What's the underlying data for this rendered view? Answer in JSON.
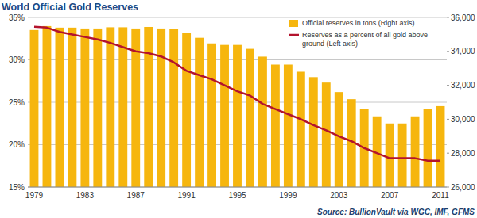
{
  "chart_data": {
    "type": "bar",
    "title": "World Official Gold Reserves",
    "source": "Source: BullionVault via WGC, IMF, GFMS",
    "categories": [
      "1979",
      null,
      null,
      null,
      "1983",
      null,
      null,
      null,
      "1987",
      null,
      null,
      null,
      "1991",
      null,
      null,
      null,
      "1995",
      null,
      null,
      null,
      "1999",
      null,
      null,
      null,
      "2003",
      null,
      null,
      null,
      "2007",
      null,
      null,
      null,
      "2011"
    ],
    "series": [
      {
        "name": "Official reserves in tons (Right axis)",
        "type": "bar",
        "color": "#f6b60e",
        "axis": "y2",
        "values": [
          35260,
          35490,
          35400,
          35400,
          35350,
          35350,
          35420,
          35420,
          35350,
          35440,
          35350,
          35330,
          35070,
          34800,
          34470,
          34380,
          34380,
          34150,
          33690,
          33220,
          33220,
          32800,
          32480,
          32160,
          31600,
          31180,
          30580,
          30170,
          29750,
          29750,
          30170,
          30580,
          30770
        ]
      },
      {
        "name": "Reserves as a percent of all gold above ground (Left axis)",
        "type": "line",
        "color": "#b3132d",
        "values": [
          33.9,
          33.8,
          33.3,
          33.0,
          32.7,
          32.4,
          32.0,
          31.5,
          31.0,
          30.8,
          30.4,
          29.7,
          28.7,
          28.2,
          27.7,
          27.0,
          26.3,
          25.8,
          24.8,
          24.2,
          23.6,
          23.0,
          22.3,
          21.7,
          21.0,
          20.4,
          19.6,
          19.0,
          18.4,
          18.4,
          18.4,
          18.1,
          18.1
        ]
      }
    ],
    "ylim": [
      15,
      35
    ],
    "yticks": [
      {
        "value": 15,
        "label": "15%"
      },
      {
        "value": 20,
        "label": "20%"
      },
      {
        "value": 25,
        "label": "25%"
      },
      {
        "value": 30,
        "label": "30%"
      },
      {
        "value": 35,
        "label": "35%"
      }
    ],
    "y2lim": [
      26000,
      36000
    ],
    "y2ticks": [
      {
        "value": 26000,
        "label": "26,000"
      },
      {
        "value": 28000,
        "label": "28,000"
      },
      {
        "value": 30000,
        "label": "30,000"
      },
      {
        "value": 32000,
        "label": "32,000"
      },
      {
        "value": 34000,
        "label": "34,000"
      },
      {
        "value": 36000,
        "label": "36,000"
      }
    ],
    "grid": true,
    "legend": "upper right"
  }
}
